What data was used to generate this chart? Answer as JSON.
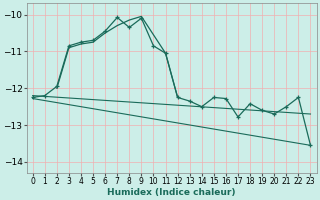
{
  "xlabel": "Humidex (Indice chaleur)",
  "bg_color": "#cceee8",
  "line_color": "#1a6b5a",
  "grid_color": "#f0b0b0",
  "xlim": [
    -0.5,
    23.5
  ],
  "ylim": [
    -14.3,
    -9.7
  ],
  "yticks": [
    -10,
    -11,
    -12,
    -13,
    -14
  ],
  "xticks": [
    0,
    1,
    2,
    3,
    4,
    5,
    6,
    7,
    8,
    9,
    10,
    11,
    12,
    13,
    14,
    15,
    16,
    17,
    18,
    19,
    20,
    21,
    22,
    23
  ],
  "curve_marked_x": [
    0,
    1,
    2,
    3,
    4,
    5,
    6,
    7,
    8,
    9,
    10,
    11,
    12,
    13,
    14,
    15,
    16,
    17,
    18,
    19,
    20,
    21,
    22,
    23
  ],
  "curve_marked_y": [
    -12.25,
    -12.2,
    -11.95,
    -10.85,
    -10.75,
    -10.7,
    -10.45,
    -10.08,
    -10.35,
    -10.1,
    -10.85,
    -11.05,
    -12.25,
    -12.35,
    -12.5,
    -12.25,
    -12.28,
    -12.78,
    -12.42,
    -12.6,
    -12.7,
    -12.5,
    -12.25,
    -13.55
  ],
  "curve2_x": [
    2,
    3,
    4,
    5,
    6,
    7,
    8,
    9,
    10,
    11,
    12
  ],
  "curve2_y": [
    -12.0,
    -10.9,
    -10.8,
    -10.75,
    -10.5,
    -10.3,
    -10.15,
    -10.05,
    -10.55,
    -11.05,
    -12.25
  ],
  "trend1_x": [
    0,
    23
  ],
  "trend1_y": [
    -12.2,
    -12.7
  ],
  "trend2_x": [
    0,
    23
  ],
  "trend2_y": [
    -12.28,
    -13.55
  ]
}
